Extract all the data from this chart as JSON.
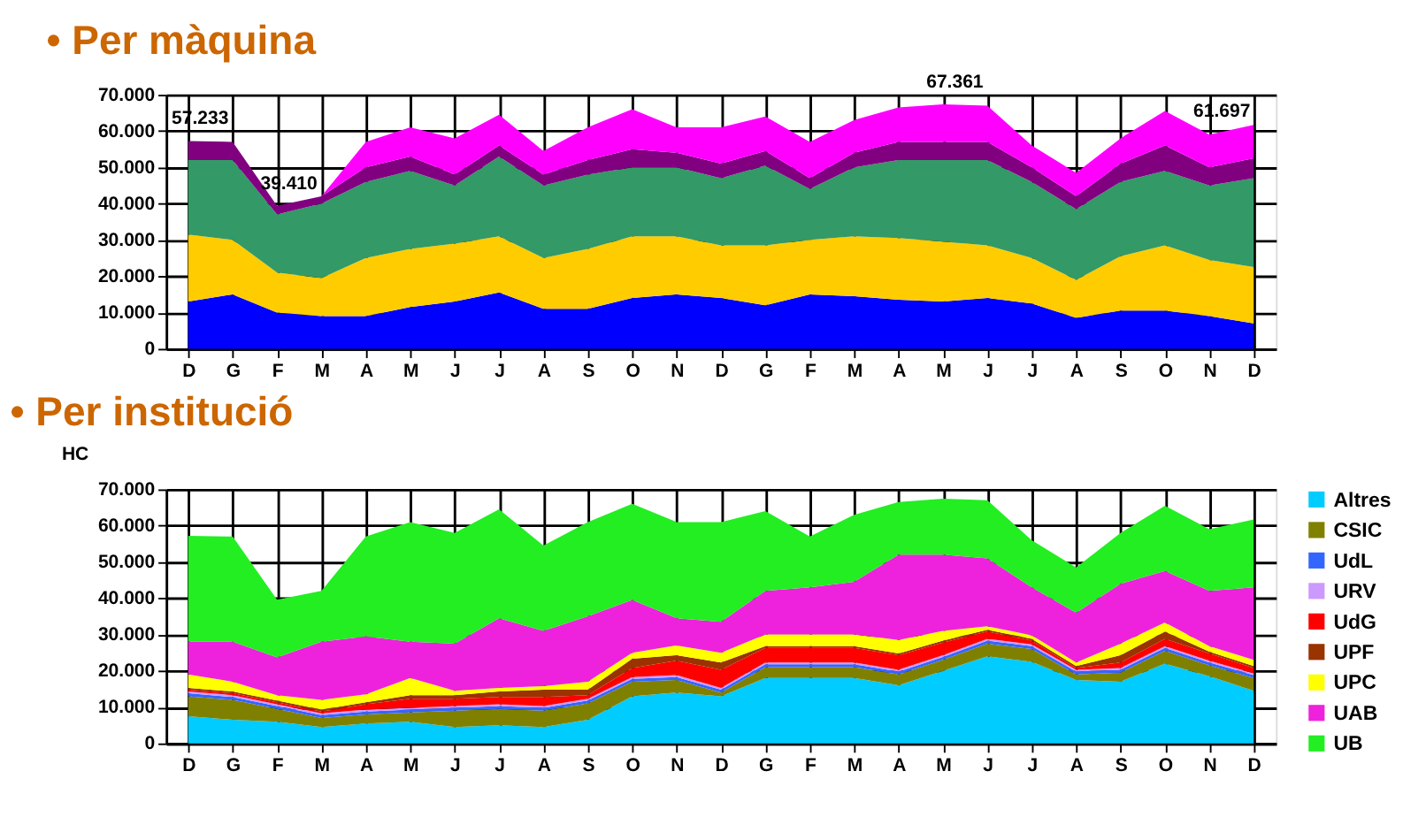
{
  "chart_data": [
    {
      "type": "area",
      "stacked": true,
      "title": "• Per màquina",
      "categories": [
        "D",
        "G",
        "F",
        "M",
        "A",
        "M",
        "J",
        "J",
        "A",
        "S",
        "O",
        "N",
        "D",
        "G",
        "F",
        "M",
        "A",
        "M",
        "J",
        "J",
        "A",
        "S",
        "O",
        "N",
        "D"
      ],
      "series": [
        {
          "color": "#0000ff",
          "values": [
            13000,
            15000,
            10000,
            9000,
            9000,
            11500,
            13000,
            15500,
            11000,
            11000,
            14000,
            15000,
            14000,
            12000,
            15000,
            14500,
            13500,
            13000,
            14000,
            12500,
            8500,
            10500,
            10500,
            9000,
            7000
          ]
        },
        {
          "color": "#ffcc00",
          "values": [
            18500,
            15000,
            11000,
            10500,
            16000,
            16000,
            16000,
            15500,
            14000,
            16500,
            17000,
            16000,
            14500,
            16500,
            15000,
            16500,
            17000,
            16500,
            14500,
            12500,
            10500,
            15000,
            18000,
            15500,
            15500
          ]
        },
        {
          "color": "#339966",
          "values": [
            20500,
            22000,
            16000,
            20500,
            21000,
            21500,
            16000,
            22000,
            20000,
            20500,
            19000,
            19000,
            18500,
            22000,
            14000,
            19000,
            21500,
            22500,
            23500,
            21000,
            19500,
            20500,
            20500,
            20500,
            24500
          ]
        },
        {
          "color": "#800080",
          "values": [
            5233,
            5000,
            2410,
            2000,
            4000,
            4000,
            3000,
            3000,
            3000,
            4000,
            5000,
            4000,
            4000,
            4000,
            3000,
            4000,
            5000,
            5000,
            5000,
            4000,
            3500,
            5000,
            7000,
            5000,
            5500
          ]
        },
        {
          "color": "#ff00ff",
          "values": [
            0,
            0,
            0,
            0,
            7000,
            8000,
            10000,
            8500,
            6500,
            9000,
            11000,
            7000,
            10000,
            9500,
            10000,
            9000,
            9500,
            10361,
            10000,
            6000,
            6500,
            7000,
            9500,
            9000,
            9197
          ]
        }
      ],
      "totals": [
        "57.233",
        null,
        "39.410",
        null,
        null,
        null,
        null,
        null,
        null,
        null,
        null,
        null,
        null,
        null,
        null,
        null,
        null,
        "67.361",
        null,
        null,
        null,
        null,
        null,
        null,
        "61.697"
      ],
      "ylim": [
        0,
        70000
      ],
      "yticks": [
        {
          "value": 0,
          "label": "0"
        },
        {
          "value": 10000,
          "label": "10.000"
        },
        {
          "value": 20000,
          "label": "20.000"
        },
        {
          "value": 30000,
          "label": "30.000"
        },
        {
          "value": 40000,
          "label": "40.000"
        },
        {
          "value": 50000,
          "label": "50.000"
        },
        {
          "value": 60000,
          "label": "60.000"
        },
        {
          "value": 70000,
          "label": "70.000"
        }
      ],
      "grid": true,
      "legend": false
    },
    {
      "type": "area",
      "stacked": true,
      "title": "• Per institució",
      "ylabel": "HC",
      "categories": [
        "D",
        "G",
        "F",
        "M",
        "A",
        "M",
        "J",
        "J",
        "A",
        "S",
        "O",
        "N",
        "D",
        "G",
        "F",
        "M",
        "A",
        "M",
        "J",
        "J",
        "A",
        "S",
        "O",
        "N",
        "D"
      ],
      "series": [
        {
          "name": "Altres",
          "color": "#00ccff",
          "values": [
            7500,
            6500,
            6000,
            4500,
            5500,
            6000,
            4500,
            5000,
            4500,
            6500,
            13000,
            14000,
            13000,
            18000,
            18000,
            18000,
            16000,
            20000,
            24000,
            22500,
            17500,
            17000,
            22000,
            18500,
            14500
          ]
        },
        {
          "name": "CSIC",
          "color": "#808000",
          "values": [
            5500,
            5500,
            3500,
            2500,
            2500,
            2500,
            4500,
            4500,
            4500,
            4500,
            4000,
            3500,
            1000,
            3000,
            3000,
            3000,
            3000,
            3000,
            3500,
            3500,
            1500,
            2500,
            3500,
            3000,
            3500
          ]
        },
        {
          "name": "UdL",
          "color": "#3366ff",
          "values": [
            800,
            800,
            800,
            800,
            800,
            800,
            800,
            800,
            800,
            800,
            800,
            800,
            800,
            800,
            800,
            800,
            800,
            800,
            800,
            800,
            800,
            800,
            800,
            800,
            800
          ]
        },
        {
          "name": "URV",
          "color": "#cc99ff",
          "values": [
            500,
            500,
            500,
            500,
            500,
            500,
            500,
            500,
            500,
            500,
            500,
            500,
            500,
            500,
            500,
            500,
            500,
            500,
            500,
            500,
            500,
            500,
            500,
            500,
            500
          ]
        },
        {
          "name": "UdG",
          "color": "#ff0000",
          "values": [
            500,
            500,
            500,
            500,
            1500,
            2500,
            2000,
            2000,
            2500,
            1000,
            2500,
            4000,
            5000,
            4000,
            4000,
            4000,
            4000,
            3500,
            2000,
            1000,
            500,
            1500,
            2000,
            2000,
            1500
          ]
        },
        {
          "name": "UPF",
          "color": "#993300",
          "values": [
            500,
            500,
            500,
            500,
            500,
            1000,
            1000,
            1500,
            2000,
            1500,
            2500,
            1500,
            2000,
            500,
            500,
            500,
            500,
            500,
            500,
            500,
            500,
            2000,
            2000,
            500,
            500
          ]
        },
        {
          "name": "UPC",
          "color": "#ffff00",
          "values": [
            3700,
            2700,
            1500,
            2700,
            2200,
            4700,
            1200,
            1000,
            1000,
            2200,
            1700,
            2700,
            2700,
            3200,
            3200,
            3200,
            3700,
            2700,
            1000,
            1000,
            1000,
            3200,
            2500,
            1500,
            1700
          ]
        },
        {
          "name": "UAB",
          "color": "#ee22dd",
          "values": [
            9000,
            11000,
            10400,
            16000,
            16000,
            10000,
            13000,
            19200,
            15200,
            18000,
            14500,
            7500,
            8500,
            12000,
            13000,
            14500,
            23500,
            21000,
            18700,
            13200,
            13700,
            16500,
            14200,
            15200,
            20000
          ]
        },
        {
          "name": "UB",
          "color": "#22ee22",
          "values": [
            29200,
            29000,
            15900,
            14000,
            27500,
            33000,
            30500,
            30000,
            23500,
            26000,
            26500,
            26500,
            27500,
            22000,
            14000,
            18500,
            14500,
            15400,
            16000,
            13000,
            12500,
            14000,
            18000,
            17000,
            18700
          ]
        }
      ],
      "ylim": [
        0,
        70000
      ],
      "yticks": [
        {
          "value": 0,
          "label": "0"
        },
        {
          "value": 10000,
          "label": "10.000"
        },
        {
          "value": 20000,
          "label": "20.000"
        },
        {
          "value": 30000,
          "label": "30.000"
        },
        {
          "value": 40000,
          "label": "40.000"
        },
        {
          "value": 50000,
          "label": "50.000"
        },
        {
          "value": 60000,
          "label": "60.000"
        },
        {
          "value": 70000,
          "label": "70.000"
        }
      ],
      "grid": true,
      "legend": "right"
    }
  ]
}
